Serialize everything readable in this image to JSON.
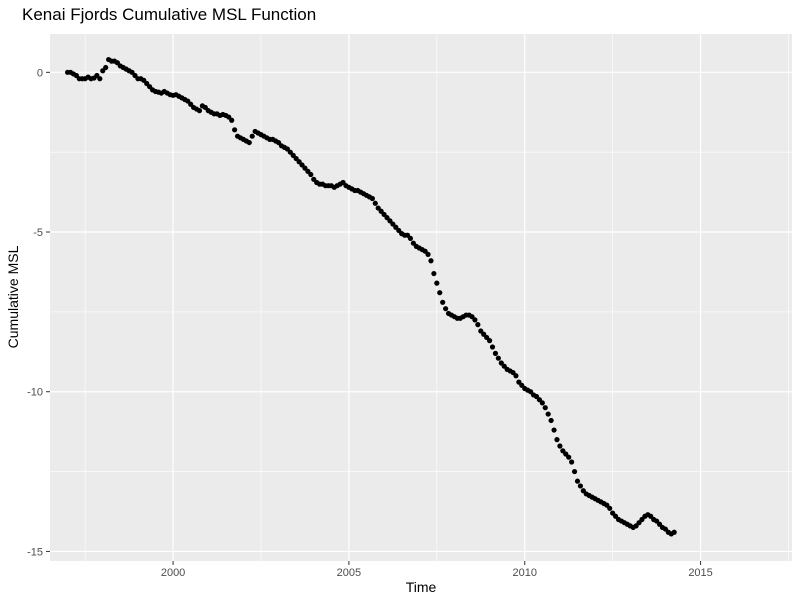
{
  "chart_data": {
    "type": "scatter",
    "title": "Kenai Fjords Cumulative MSL Function",
    "xlabel": "Time",
    "ylabel": "Cumulative MSL",
    "xlim": [
      1996.5,
      2017.6
    ],
    "ylim": [
      -15.3,
      1.2
    ],
    "x_ticks": [
      2000,
      2005,
      2010,
      2015
    ],
    "y_ticks": [
      0,
      -5,
      -10,
      -15
    ],
    "x_tick_labels": [
      "2000",
      "2005",
      "2010",
      "2015"
    ],
    "y_tick_labels": [
      "0",
      "-5",
      "-10",
      "-15"
    ],
    "grid": true,
    "panel_background": "#ebebeb",
    "grid_color": "#ffffff",
    "point_color": "#000000",
    "x_start": 1997.0,
    "x_step": 0.0833333,
    "y": [
      0.0,
      0.0,
      -0.05,
      -0.1,
      -0.2,
      -0.2,
      -0.2,
      -0.15,
      -0.2,
      -0.18,
      -0.1,
      -0.2,
      0.05,
      0.15,
      0.4,
      0.35,
      0.35,
      0.3,
      0.2,
      0.15,
      0.1,
      0.05,
      0.0,
      -0.1,
      -0.2,
      -0.2,
      -0.25,
      -0.35,
      -0.45,
      -0.55,
      -0.6,
      -0.62,
      -0.65,
      -0.6,
      -0.65,
      -0.7,
      -0.72,
      -0.7,
      -0.75,
      -0.8,
      -0.85,
      -0.9,
      -1.0,
      -1.1,
      -1.15,
      -1.2,
      -1.05,
      -1.1,
      -1.2,
      -1.25,
      -1.3,
      -1.3,
      -1.35,
      -1.32,
      -1.35,
      -1.4,
      -1.5,
      -1.8,
      -2.0,
      -2.05,
      -2.1,
      -2.15,
      -2.2,
      -2.0,
      -1.85,
      -1.9,
      -1.95,
      -2.0,
      -2.05,
      -2.1,
      -2.1,
      -2.15,
      -2.2,
      -2.3,
      -2.35,
      -2.4,
      -2.5,
      -2.6,
      -2.7,
      -2.8,
      -2.9,
      -3.0,
      -3.1,
      -3.2,
      -3.35,
      -3.45,
      -3.5,
      -3.5,
      -3.55,
      -3.55,
      -3.55,
      -3.6,
      -3.55,
      -3.5,
      -3.45,
      -3.55,
      -3.6,
      -3.65,
      -3.7,
      -3.7,
      -3.75,
      -3.8,
      -3.85,
      -3.9,
      -3.95,
      -4.1,
      -4.25,
      -4.35,
      -4.45,
      -4.55,
      -4.65,
      -4.75,
      -4.85,
      -4.95,
      -5.05,
      -5.1,
      -5.1,
      -5.2,
      -5.35,
      -5.45,
      -5.5,
      -5.55,
      -5.6,
      -5.7,
      -5.9,
      -6.3,
      -6.6,
      -6.9,
      -7.2,
      -7.4,
      -7.55,
      -7.6,
      -7.65,
      -7.7,
      -7.7,
      -7.65,
      -7.6,
      -7.6,
      -7.65,
      -7.75,
      -7.9,
      -8.1,
      -8.2,
      -8.3,
      -8.4,
      -8.6,
      -8.8,
      -8.95,
      -9.1,
      -9.2,
      -9.3,
      -9.35,
      -9.4,
      -9.5,
      -9.7,
      -9.8,
      -9.9,
      -9.95,
      -10.0,
      -10.1,
      -10.15,
      -10.25,
      -10.35,
      -10.5,
      -10.7,
      -10.9,
      -11.2,
      -11.5,
      -11.7,
      -11.85,
      -11.95,
      -12.05,
      -12.2,
      -12.5,
      -12.8,
      -12.95,
      -13.1,
      -13.2,
      -13.25,
      -13.3,
      -13.35,
      -13.4,
      -13.45,
      -13.5,
      -13.55,
      -13.65,
      -13.8,
      -13.9,
      -14.0,
      -14.05,
      -14.1,
      -14.15,
      -14.2,
      -14.25,
      -14.2,
      -14.1,
      -14.0,
      -13.9,
      -13.85,
      -13.9,
      -14.0,
      -14.05,
      -14.15,
      -14.25,
      -14.3,
      -14.4,
      -14.45,
      -14.4
    ]
  }
}
